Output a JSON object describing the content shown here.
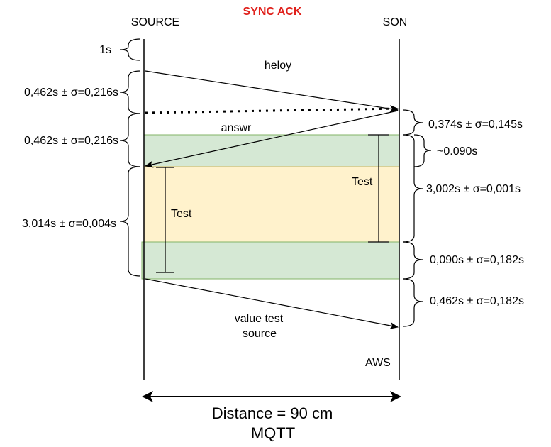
{
  "title": "SYNC ACK",
  "source_label": "SOURCE",
  "son_label": "SON",
  "aws_label": "AWS",
  "messages": {
    "heloy": "heloy",
    "answr": "answr",
    "value_line1": "value test",
    "value_line2": "source"
  },
  "test_labels": {
    "left": "Test",
    "right": "Test"
  },
  "left_intervals": [
    "1s",
    "0,462s ±   σ=0,216s",
    "0,462s ±   σ=0,216s",
    "3,014s ± σ=0,004s"
  ],
  "right_intervals": [
    "0,374s ±   σ=0,145s",
    "~0.090s",
    "3,002s ± σ=0,001s",
    "0,090s ±   σ=0,182s",
    "0,462s ±   σ=0,182s"
  ],
  "footer": {
    "distance": "Distance = 90 cm",
    "protocol": "MQTT"
  },
  "colors": {
    "title": "#e0201b",
    "green_band": "#d5e8d4",
    "green_border": "#82b366",
    "yellow_band": "#fff2cc",
    "yellow_border": "#d6b656"
  }
}
